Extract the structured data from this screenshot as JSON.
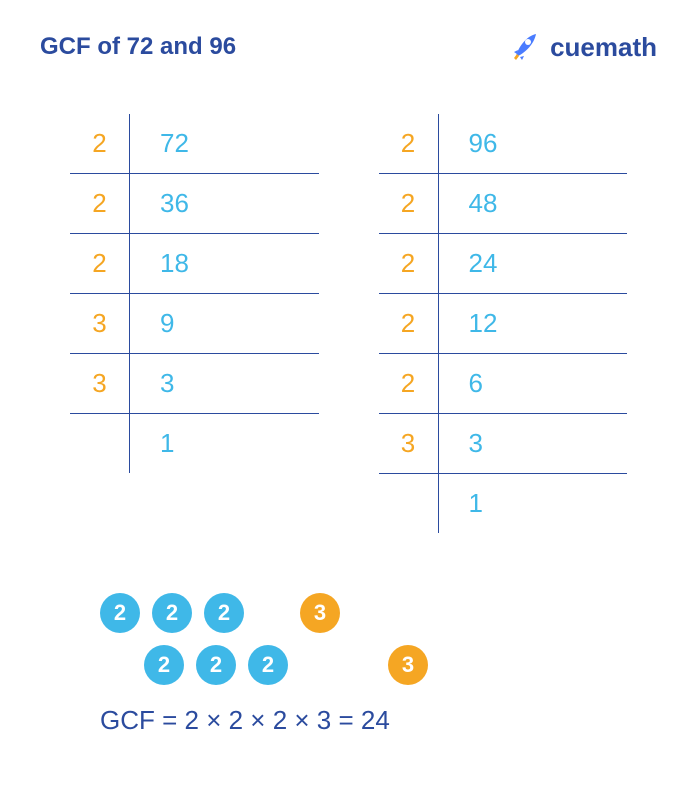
{
  "title": "GCF of 72 and 96",
  "logo_text": "cuemath",
  "colors": {
    "title": "#2b4b9e",
    "orange": "#f5a623",
    "blue": "#3fb8e8",
    "darkblue": "#2b4b9e",
    "border": "#2b4b9e",
    "logo_cue": "#2b4b9e",
    "rocket_body": "#4a7cff",
    "rocket_flame": "#f5a623"
  },
  "table_left": [
    {
      "factor": "2",
      "value": "72",
      "fcolor": "#f5a623",
      "vcolor": "#3fb8e8"
    },
    {
      "factor": "2",
      "value": "36",
      "fcolor": "#f5a623",
      "vcolor": "#3fb8e8"
    },
    {
      "factor": "2",
      "value": "18",
      "fcolor": "#f5a623",
      "vcolor": "#3fb8e8"
    },
    {
      "factor": "3",
      "value": "9",
      "fcolor": "#f5a623",
      "vcolor": "#3fb8e8"
    },
    {
      "factor": "3",
      "value": "3",
      "fcolor": "#f5a623",
      "vcolor": "#3fb8e8"
    },
    {
      "factor": "",
      "value": "1",
      "fcolor": "#f5a623",
      "vcolor": "#3fb8e8"
    }
  ],
  "table_right": [
    {
      "factor": "2",
      "value": "96",
      "fcolor": "#f5a623",
      "vcolor": "#3fb8e8"
    },
    {
      "factor": "2",
      "value": "48",
      "fcolor": "#f5a623",
      "vcolor": "#3fb8e8"
    },
    {
      "factor": "2",
      "value": "24",
      "fcolor": "#f5a623",
      "vcolor": "#3fb8e8"
    },
    {
      "factor": "2",
      "value": "12",
      "fcolor": "#f5a623",
      "vcolor": "#3fb8e8"
    },
    {
      "factor": "2",
      "value": "6",
      "fcolor": "#f5a623",
      "vcolor": "#3fb8e8"
    },
    {
      "factor": "3",
      "value": "3",
      "fcolor": "#f5a623",
      "vcolor": "#3fb8e8"
    },
    {
      "factor": "",
      "value": "1",
      "fcolor": "#f5a623",
      "vcolor": "#3fb8e8"
    }
  ],
  "circles_top": [
    {
      "val": "2",
      "bg": "#3fb8e8"
    },
    {
      "val": "2",
      "bg": "#3fb8e8"
    },
    {
      "val": "2",
      "bg": "#3fb8e8"
    },
    {
      "val": "",
      "bg": ""
    },
    {
      "val": "3",
      "bg": "#f5a623"
    }
  ],
  "circles_bottom": [
    {
      "val": "",
      "bg": ""
    },
    {
      "val": "2",
      "bg": "#3fb8e8"
    },
    {
      "val": "2",
      "bg": "#3fb8e8"
    },
    {
      "val": "2",
      "bg": "#3fb8e8"
    },
    {
      "val": "",
      "bg": ""
    },
    {
      "val": "",
      "bg": ""
    },
    {
      "val": "3",
      "bg": "#f5a623"
    }
  ],
  "result": "GCF = 2 × 2 × 2 × 3 = 24"
}
